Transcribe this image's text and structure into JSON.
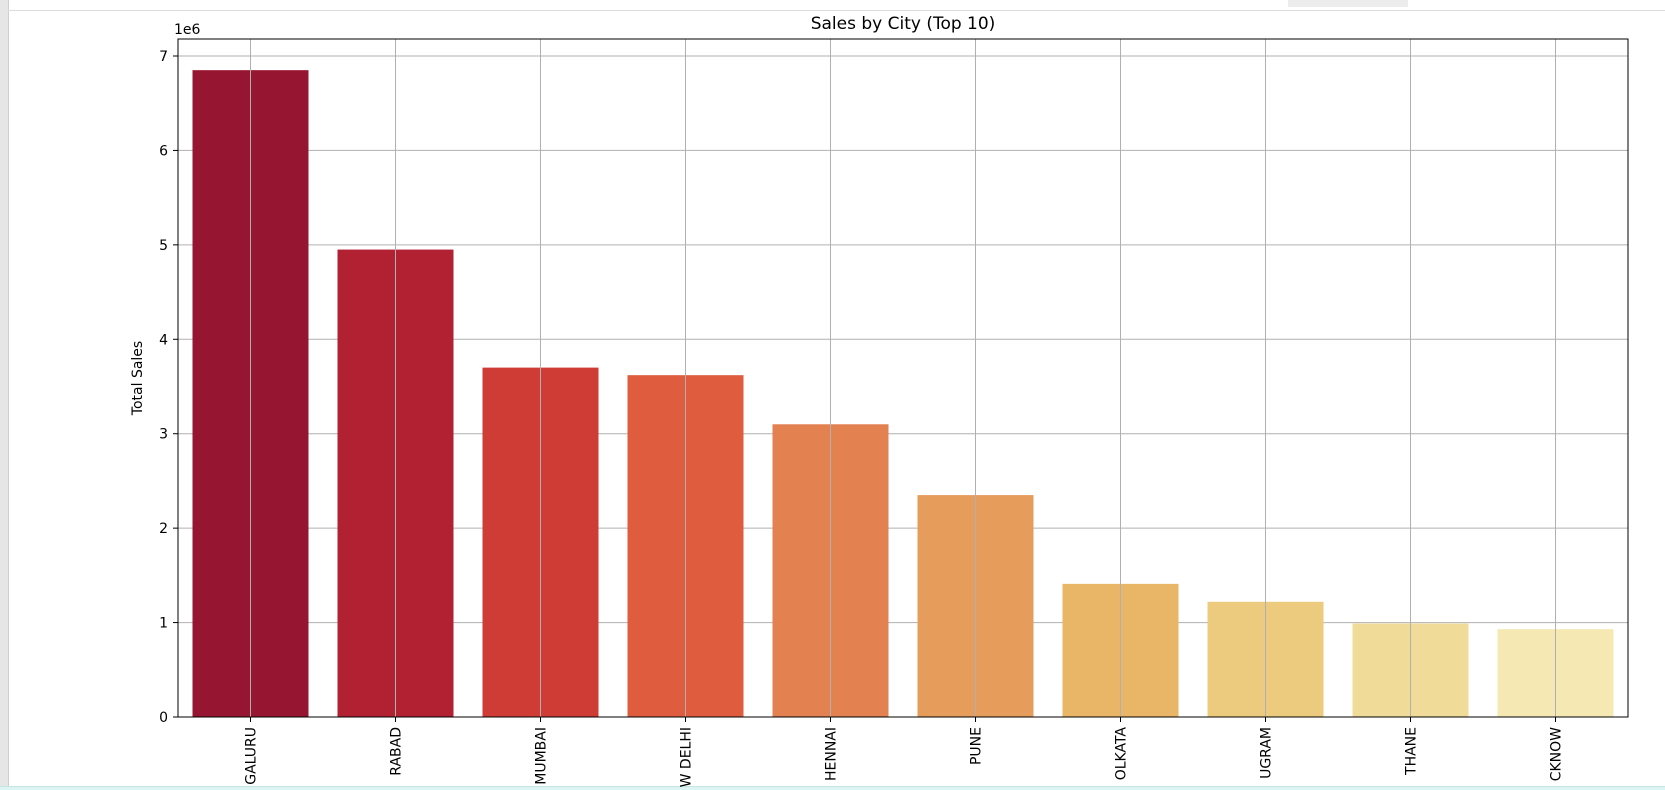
{
  "chart_data": {
    "type": "bar",
    "title": "Sales by City (Top 10)",
    "xlabel": "",
    "ylabel": "Total Sales",
    "y_offset_label": "1e6",
    "categories": [
      "BENGALURU",
      "HYDERABAD",
      "MUMBAI",
      "NEW DELHI",
      "CHENNAI",
      "PUNE",
      "KOLKATA",
      "GURUGRAM",
      "THANE",
      "LUCKNOW"
    ],
    "visible_tick_text": [
      "GALURU",
      "RABAD",
      "MUMBAI",
      "W DELHI",
      "HENNAI",
      "PUNE",
      "OLKATA",
      "UGRAM",
      "THANE",
      "CKNOW"
    ],
    "values": [
      6850000,
      4950000,
      3700000,
      3620000,
      3100000,
      2350000,
      1410000,
      1220000,
      990000,
      930000
    ],
    "colors": [
      "#961631",
      "#b22132",
      "#cf3b35",
      "#e05c3f",
      "#e48150",
      "#e69c5b",
      "#e9b566",
      "#eccb7f",
      "#f0dc98",
      "#f5e8b3"
    ],
    "ylim": [
      0,
      7180000
    ],
    "yticks": [
      0,
      1,
      2,
      3,
      4,
      5,
      6,
      7
    ],
    "ytick_scale": 1000000,
    "grid": true,
    "legend": "none"
  }
}
